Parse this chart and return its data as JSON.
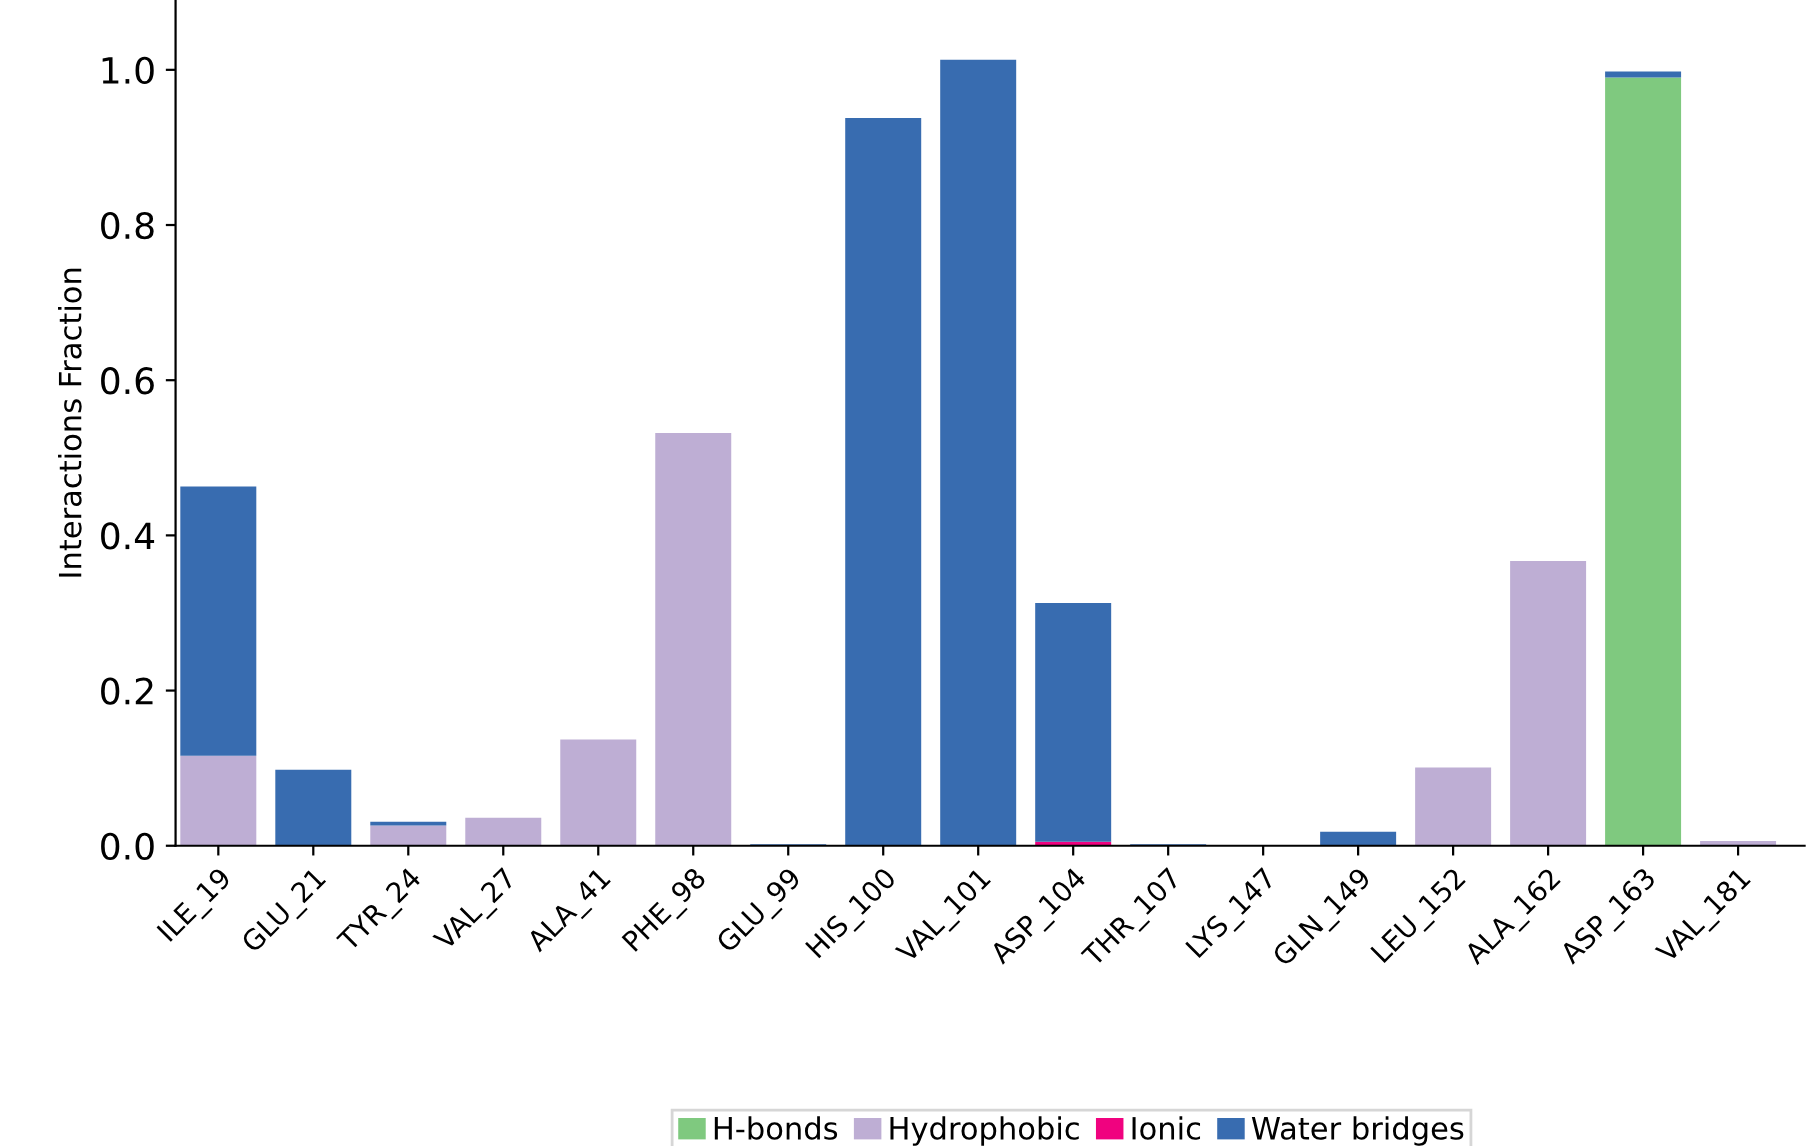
{
  "chart_data": {
    "type": "bar",
    "stacked": true,
    "ylabel": "Interactions Fraction",
    "categories": [
      "ILE_19",
      "GLU_21",
      "TYR_24",
      "VAL_27",
      "ALA_41",
      "PHE_98",
      "GLU_99",
      "HIS_100",
      "VAL_101",
      "ASP_104",
      "THR_107",
      "LYS_147",
      "GLN_149",
      "LEU_152",
      "ALA_162",
      "ASP_163",
      "VAL_181"
    ],
    "series": [
      {
        "name": "H-bonds",
        "color": "#7fc97f",
        "values": [
          null,
          null,
          null,
          null,
          null,
          null,
          null,
          null,
          null,
          null,
          null,
          null,
          null,
          null,
          null,
          0.99,
          null
        ]
      },
      {
        "name": "Hydrophobic",
        "color": "#beaed4",
        "values": [
          0.116,
          null,
          0.026,
          0.036,
          0.137,
          0.532,
          null,
          null,
          null,
          null,
          null,
          null,
          null,
          0.101,
          0.367,
          null,
          0.006
        ]
      },
      {
        "name": "Ionic",
        "color": "#f0027f",
        "values": [
          null,
          null,
          null,
          null,
          null,
          null,
          null,
          null,
          null,
          0.005,
          null,
          null,
          null,
          null,
          null,
          null,
          null
        ]
      },
      {
        "name": "Water bridges",
        "color": "#386cb0",
        "values": [
          0.347,
          0.098,
          0.005,
          null,
          null,
          null,
          0.002,
          0.938,
          1.013,
          0.308,
          0.002,
          null,
          0.018,
          null,
          null,
          0.008,
          null
        ]
      }
    ],
    "ylim": [
      0,
      1.09
    ],
    "yticks": [
      {
        "value": 0,
        "label": "0.0"
      },
      {
        "value": 0.2,
        "label": "0.2"
      },
      {
        "value": 0.4,
        "label": "0.4"
      },
      {
        "value": 0.6,
        "label": "0.6"
      },
      {
        "value": 0.8,
        "label": "0.8"
      },
      {
        "value": 1.0,
        "label": "1.0"
      }
    ],
    "grid": false,
    "legend": "bottom"
  }
}
